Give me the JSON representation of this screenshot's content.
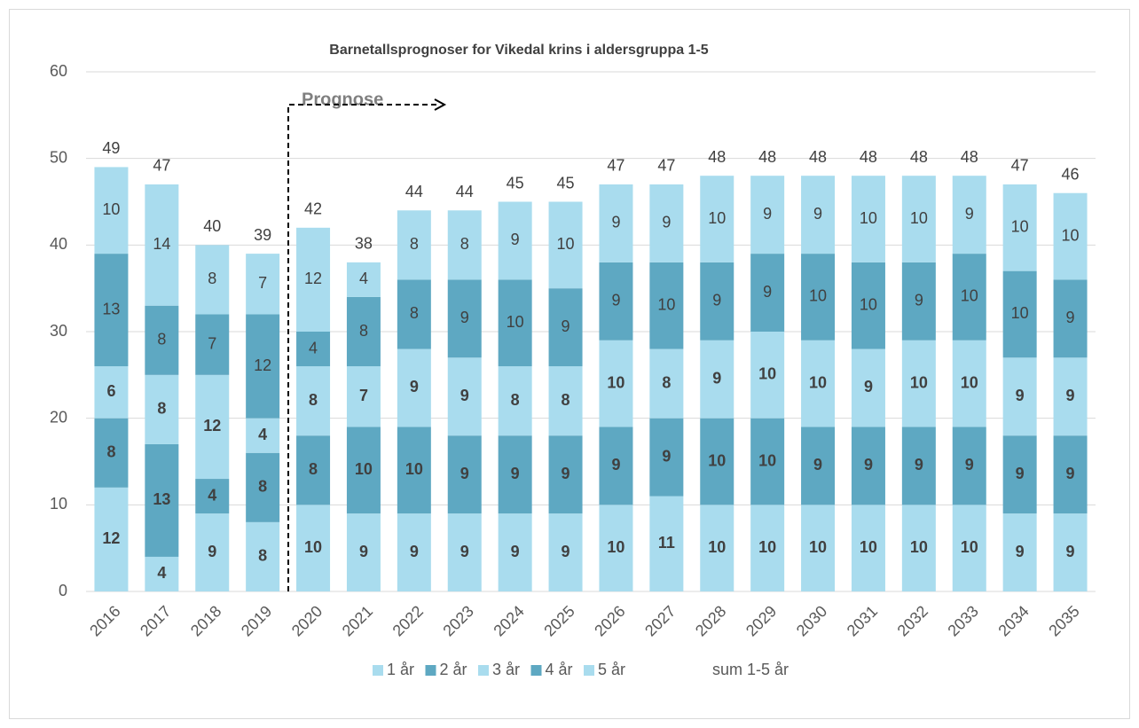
{
  "chart_data": {
    "type": "stacked_bar",
    "title": "Barnetallsprognoser for Vikedal krins i aldersgruppa 1-5",
    "annotation": "Prognose",
    "categories": [
      "2016",
      "2017",
      "2018",
      "2019",
      "2020",
      "2021",
      "2022",
      "2023",
      "2024",
      "2025",
      "2026",
      "2027",
      "2028",
      "2029",
      "2030",
      "2031",
      "2032",
      "2033",
      "2034",
      "2035"
    ],
    "series": [
      {
        "name": "1 år",
        "color": "#a9dcee",
        "bold": true,
        "values": [
          12,
          4,
          9,
          8,
          10,
          9,
          9,
          9,
          9,
          9,
          10,
          11,
          10,
          10,
          10,
          10,
          10,
          10,
          9,
          9
        ]
      },
      {
        "name": "2 år",
        "color": "#5ea8c2",
        "bold": true,
        "values": [
          8,
          13,
          4,
          8,
          8,
          10,
          10,
          9,
          9,
          9,
          9,
          9,
          10,
          10,
          9,
          9,
          9,
          9,
          9,
          9
        ]
      },
      {
        "name": "3 år",
        "color": "#a9dcee",
        "bold": true,
        "values": [
          6,
          8,
          12,
          4,
          8,
          7,
          9,
          9,
          8,
          8,
          10,
          8,
          9,
          10,
          10,
          9,
          10,
          10,
          9,
          9
        ]
      },
      {
        "name": "4 år",
        "color": "#5ea8c2",
        "bold": false,
        "values": [
          13,
          8,
          7,
          12,
          4,
          8,
          8,
          9,
          10,
          9,
          9,
          10,
          9,
          9,
          10,
          10,
          9,
          10,
          10,
          9
        ]
      },
      {
        "name": "5 år",
        "color": "#a9dcee",
        "bold": false,
        "values": [
          10,
          14,
          8,
          7,
          12,
          4,
          8,
          8,
          9,
          10,
          9,
          9,
          10,
          9,
          9,
          10,
          10,
          9,
          10,
          10
        ]
      },
      {
        "name": "sum 1-5 år",
        "type": "label",
        "values": [
          49,
          47,
          40,
          39,
          42,
          38,
          44,
          44,
          45,
          45,
          47,
          47,
          48,
          48,
          48,
          48,
          48,
          48,
          47,
          46
        ]
      }
    ],
    "ylim": [
      0,
      60
    ],
    "yticks": [
      0,
      10,
      20,
      30,
      40,
      50,
      60
    ],
    "grid": true,
    "legend": "bottom"
  }
}
